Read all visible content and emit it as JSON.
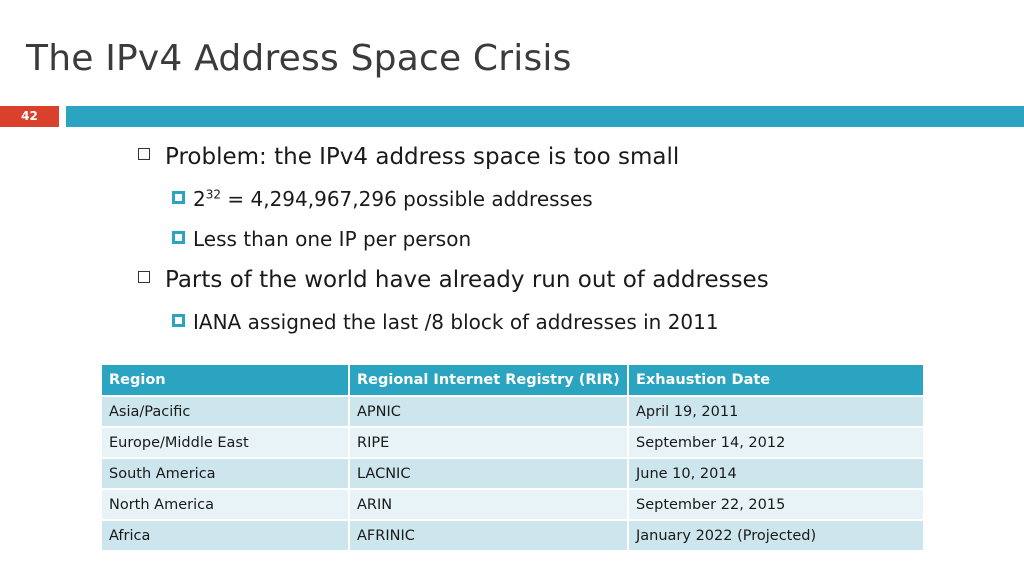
{
  "title": "The IPv4 Address Space Crisis",
  "slide_number": "42",
  "bullets": {
    "b1": "Problem: the IPv4 address space is too small",
    "b1_sub1_base": "2",
    "b1_sub1_exp": "32",
    "b1_sub1_rest": " = 4,294,967,296 possible addresses",
    "b1_sub2": "Less than one IP per person",
    "b2": "Parts of the world have already run out of addresses",
    "b2_sub1": "IANA assigned the last /8 block of addresses in 2011"
  },
  "table": {
    "headers": [
      "Region",
      "Regional  Internet Registry (RIR)",
      "Exhaustion Date"
    ],
    "rows": [
      [
        "Asia/Pacific",
        "APNIC",
        "April 19, 2011"
      ],
      [
        "Europe/Middle East",
        "RIPE",
        "September 14, 2012"
      ],
      [
        "South America",
        "LACNIC",
        "June 10, 2014"
      ],
      [
        "North America",
        "ARIN",
        "September 22, 2015"
      ],
      [
        "Africa",
        "AFRINIC",
        "January 2022 (Projected)"
      ]
    ]
  },
  "colors": {
    "accent": "#2aa4c1",
    "slide_number_bg": "#d9412c",
    "row_dark": "#cde6ee",
    "row_light": "#e7f3f7"
  }
}
